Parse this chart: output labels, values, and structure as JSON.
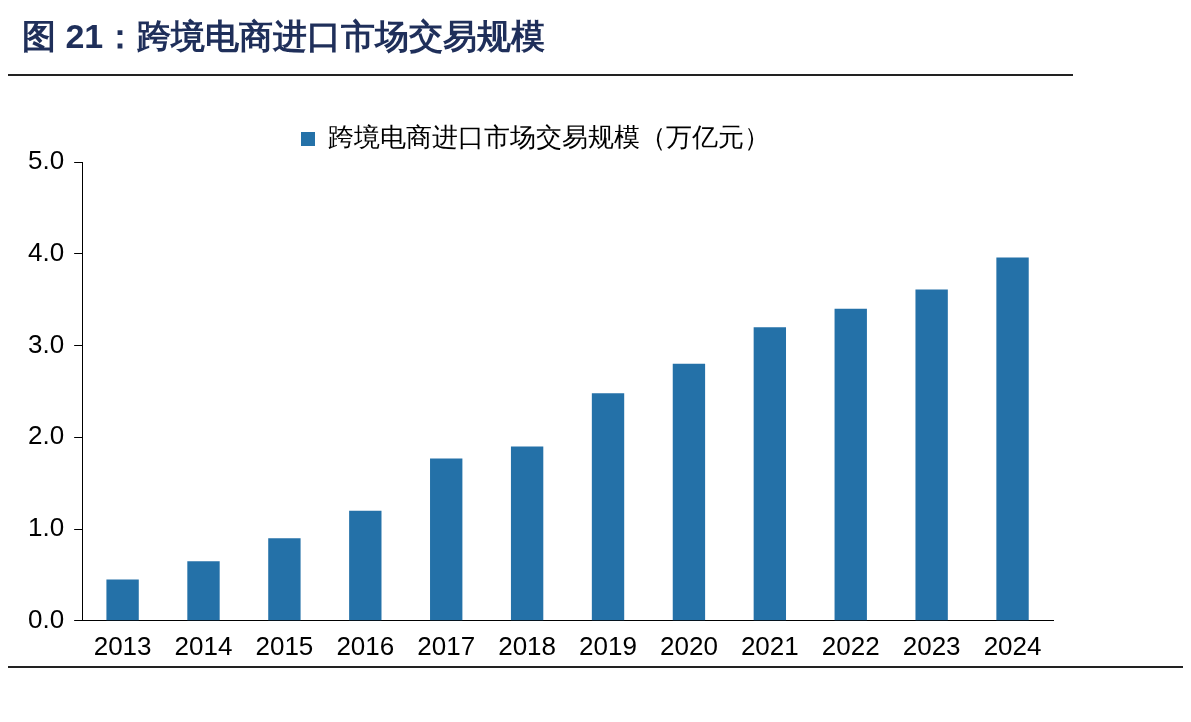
{
  "chart_data": {
    "type": "bar",
    "title": "图 21：跨境电商进口市场交易规模",
    "categories": [
      "2013",
      "2014",
      "2015",
      "2016",
      "2017",
      "2018",
      "2019",
      "2020",
      "2021",
      "2022",
      "2023",
      "2024"
    ],
    "series": [
      {
        "name": "跨境电商进口市场交易规模（万亿元）",
        "color": "#2471a8",
        "values": [
          0.45,
          0.65,
          0.9,
          1.2,
          1.77,
          1.9,
          2.48,
          2.8,
          3.2,
          3.4,
          3.61,
          3.96
        ]
      }
    ],
    "ylim": [
      0,
      5
    ],
    "yticks": [
      {
        "value": 0,
        "label": "0.0"
      },
      {
        "value": 1,
        "label": "1.0"
      },
      {
        "value": 2,
        "label": "2.0"
      },
      {
        "value": 3,
        "label": "3.0"
      },
      {
        "value": 4,
        "label": "4.0"
      },
      {
        "value": 5,
        "label": "5.0"
      }
    ],
    "grid": false,
    "legend": "top"
  }
}
